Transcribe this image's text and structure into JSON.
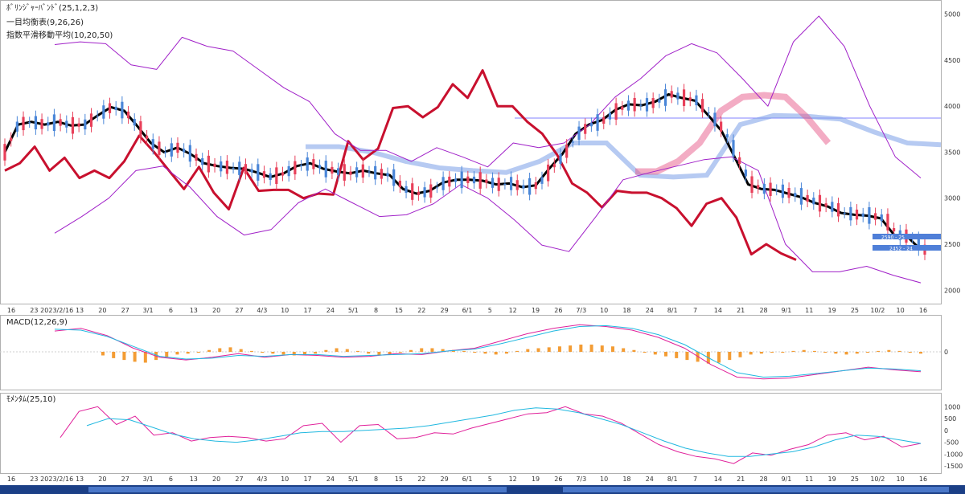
{
  "legends": {
    "bollinger": "ﾎﾞﾘﾝｼﾞｬｰﾊﾞﾝﾄﾞ(25,1,2,3)",
    "ichimoku": "一目均衡表(9,26,26)",
    "ema": "指数平滑移動平均(10,20,50)",
    "macd": "MACD(12,26,9)",
    "momentum": "ﾓﾒﾝﾀﾑ(25,10)"
  },
  "chart_data": [
    {
      "type": "line",
      "panel": "price",
      "y_ticks": [
        2000,
        2500,
        3000,
        3500,
        4000,
        4500,
        5000
      ],
      "ylim": [
        1880,
        5050
      ],
      "x_ticks": [
        "16",
        "23",
        "2023/2/16",
        "13",
        "20",
        "27",
        "3/1",
        "6",
        "13",
        "20",
        "27",
        "4/3",
        "10",
        "17",
        "24",
        "5/1",
        "8",
        "15",
        "22",
        "29",
        "6/1",
        "5",
        "12",
        "19",
        "26",
        "7/3",
        "10",
        "18",
        "24",
        "8/1",
        "7",
        "14",
        "21",
        "28",
        "9/1",
        "11",
        "19",
        "25",
        "10/2",
        "10",
        "16"
      ],
      "price_labels": [
        "2590 - 25",
        "2452 - 24"
      ],
      "series": [
        {
          "name": "line-black",
          "color": "#000000",
          "values": [
            3500,
            3800,
            3830,
            3800,
            3830,
            3790,
            3800,
            3900,
            3990,
            3950,
            3780,
            3600,
            3500,
            3550,
            3480,
            3380,
            3350,
            3330,
            3320,
            3280,
            3230,
            3270,
            3350,
            3380,
            3320,
            3290,
            3270,
            3300,
            3270,
            3250,
            3100,
            3050,
            3080,
            3170,
            3200,
            3200,
            3190,
            3150,
            3160,
            3120,
            3140,
            3320,
            3480,
            3700,
            3800,
            3850,
            3960,
            4020,
            4010,
            4050,
            4130,
            4090,
            4060,
            3900,
            3730,
            3440,
            3150,
            3100,
            3090,
            3050,
            3010,
            2950,
            2910,
            2840,
            2820,
            2810,
            2780,
            2600,
            2580,
            2440
          ]
        },
        {
          "name": "line-red",
          "color": "#c8102e",
          "values": [
            3300,
            3380,
            3560,
            3300,
            3440,
            3220,
            3300,
            3220,
            3400,
            3680,
            3500,
            3300,
            3100,
            3340,
            3060,
            2880,
            3330,
            3080,
            3090,
            3090,
            3000,
            3050,
            3040,
            3620,
            3420,
            3540,
            3980,
            4000,
            3880,
            3990,
            4240,
            4090,
            4390,
            4000,
            4000,
            3830,
            3700,
            3470,
            3160,
            3060,
            2900,
            3080,
            3060,
            3060,
            3000,
            2890,
            2700,
            2940,
            3000,
            2790,
            2390,
            2500,
            2400,
            2330
          ]
        },
        {
          "name": "bb-upper-3",
          "color": "#a020c8",
          "values": [
            4670,
            4700,
            4680,
            4450,
            4400,
            4750,
            4650,
            4600,
            4400,
            4200,
            4050,
            3700,
            3520,
            3520,
            3400,
            3550,
            3450,
            3340,
            3600,
            3550,
            3600,
            3800,
            4100,
            4300,
            4550,
            4680,
            4580,
            4300,
            4000,
            4700,
            4980,
            4650,
            4000,
            3450,
            3220
          ]
        },
        {
          "name": "bb-lower-3",
          "color": "#a020c8",
          "values": [
            2620,
            2800,
            3000,
            3300,
            3350,
            3120,
            2800,
            2600,
            2660,
            2950,
            3100,
            2950,
            2800,
            2820,
            2940,
            3150,
            3000,
            2760,
            2490,
            2420,
            2800,
            3200,
            3280,
            3350,
            3420,
            3450,
            3300,
            2500,
            2200,
            2200,
            2260,
            2160,
            2080
          ]
        },
        {
          "name": "cloud-senkou-a",
          "color": "#7a9ee8",
          "values": [
            3560,
            3560,
            3500,
            3400,
            3330,
            3300,
            3280,
            3400,
            3600,
            3600,
            3250,
            3230,
            3250,
            3800,
            3900,
            3890,
            3860,
            3720,
            3600,
            3580
          ]
        },
        {
          "name": "cloud-senkou-b",
          "color": "#e85a8a",
          "values": [
            3290,
            3290,
            3400,
            3600,
            3950,
            4100,
            4120,
            4100,
            3880,
            3600
          ]
        }
      ]
    },
    {
      "type": "line",
      "panel": "macd",
      "y_ticks": [
        0
      ],
      "series": [
        {
          "name": "macd",
          "color": "#e0209a",
          "values": [
            230,
            260,
            180,
            40,
            -60,
            -90,
            -60,
            -20,
            -60,
            -30,
            -40,
            -60,
            -50,
            -20,
            -30,
            10,
            40,
            120,
            200,
            260,
            300,
            280,
            240,
            160,
            40,
            -140,
            -280,
            -300,
            -290,
            -250,
            -210,
            -170,
            -200,
            -220
          ]
        },
        {
          "name": "signal",
          "color": "#20b8e0",
          "values": [
            250,
            240,
            170,
            60,
            -50,
            -80,
            -70,
            -40,
            -50,
            -30,
            -30,
            -50,
            -40,
            -30,
            -20,
            10,
            30,
            90,
            160,
            230,
            280,
            290,
            260,
            190,
            80,
            -80,
            -230,
            -280,
            -270,
            -240,
            -210,
            -180,
            -190,
            -210
          ]
        },
        {
          "name": "histogram",
          "color": "#f39c34",
          "values": [
            -40,
            -70,
            -90,
            -110,
            -120,
            -90,
            -60,
            -30,
            -20,
            -10,
            20,
            40,
            50,
            30,
            10,
            -10,
            -20,
            -30,
            -40,
            -30,
            -20,
            20,
            40,
            30,
            10,
            -20,
            -40,
            -30,
            -10,
            20,
            40,
            40,
            30,
            20,
            10,
            -10,
            -20,
            -30,
            -20,
            10,
            30,
            40,
            50,
            60,
            70,
            80,
            80,
            70,
            60,
            40,
            20,
            -10,
            -30,
            -50,
            -70,
            -90,
            -110,
            -130,
            -120,
            -90,
            -60,
            -30,
            -20,
            -10,
            -10,
            10,
            20,
            10,
            -10,
            -20,
            -30,
            -20,
            -10,
            10,
            20,
            10,
            -10,
            -20
          ]
        }
      ]
    },
    {
      "type": "line",
      "panel": "momentum",
      "y_ticks": [
        1000,
        500,
        0,
        -500,
        -1000,
        -1500
      ],
      "ylim": [
        -1700,
        1350
      ],
      "series": [
        {
          "name": "momentum",
          "color": "#e0209a",
          "values": [
            -300,
            800,
            1000,
            250,
            600,
            -200,
            -100,
            -450,
            -300,
            -250,
            -300,
            -450,
            -350,
            200,
            300,
            -500,
            200,
            250,
            -350,
            -300,
            -100,
            -150,
            100,
            300,
            500,
            700,
            750,
            1000,
            700,
            600,
            300,
            -150,
            -600,
            -900,
            -1100,
            -1200,
            -1400,
            -950,
            -1050,
            -800,
            -600,
            -200,
            -100,
            -400,
            -250,
            -700,
            -550
          ]
        },
        {
          "name": "signal",
          "color": "#20b8e0",
          "values": [
            200,
            500,
            450,
            150,
            -150,
            -350,
            -450,
            -500,
            -400,
            -250,
            -100,
            -50,
            -50,
            0,
            50,
            100,
            200,
            350,
            500,
            650,
            850,
            950,
            900,
            750,
            500,
            250,
            -100,
            -450,
            -750,
            -950,
            -1100,
            -1100,
            -1000,
            -900,
            -700,
            -400,
            -200,
            -250,
            -400,
            -550
          ]
        }
      ]
    }
  ]
}
